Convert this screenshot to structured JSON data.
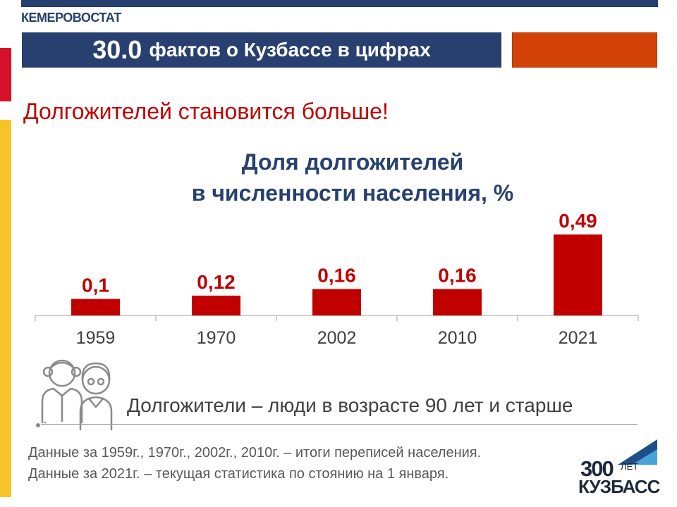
{
  "header": {
    "org_name": "КЕМЕРОВОСТАТ",
    "title_number": "30.0",
    "title_text": "фактов о Кузбассе в цифрах"
  },
  "headline": "Долгожителей становится больше!",
  "chart_data": {
    "type": "bar",
    "title_line1": "Доля долгожителей",
    "title_line2": "в численности населения, %",
    "categories": [
      "1959",
      "1970",
      "2002",
      "2010",
      "2021"
    ],
    "values": [
      0.1,
      0.12,
      0.16,
      0.16,
      0.49
    ],
    "value_labels": [
      "0,1",
      "0,12",
      "0,16",
      "0,16",
      "0,49"
    ],
    "bar_color": "#c00000",
    "ylim": [
      0,
      0.49
    ],
    "grid": false
  },
  "definition": "Долгожители – люди в возрасте 90 лет и старше",
  "footnote": {
    "line1": "Данные за 1959г., 1970г., 2002г., 2010г. – итоги переписей населения.",
    "line2": "Данные за 2021г. – текущая статистика по стоянию на 1 января."
  },
  "logo": {
    "number": "300",
    "small": "ЛЕТ",
    "word": "КУЗБАСС"
  },
  "colors": {
    "navy": "#27406f",
    "red": "#c00000",
    "orange": "#d24106",
    "yellow": "#f6c428"
  },
  "icons": [
    "elderly-couple-icon",
    "kuzbass-300-logo"
  ]
}
